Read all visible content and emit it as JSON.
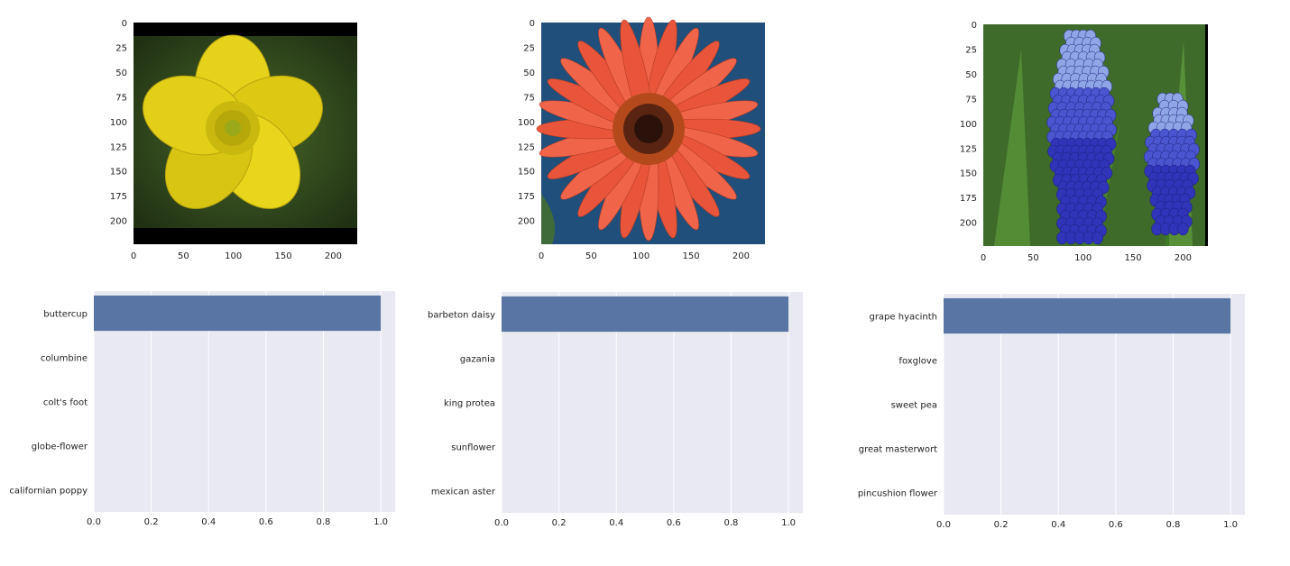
{
  "chart_data": [
    {
      "type": "image",
      "subject": "yellow buttercup flower",
      "xlim": [
        0,
        224
      ],
      "ylim": [
        224,
        0
      ],
      "xticks": [
        0,
        50,
        100,
        150,
        200
      ],
      "yticks": [
        0,
        25,
        50,
        75,
        100,
        125,
        150,
        175,
        200
      ]
    },
    {
      "type": "image",
      "subject": "red barbeton daisy",
      "xlim": [
        0,
        224
      ],
      "ylim": [
        224,
        0
      ],
      "xticks": [
        0,
        50,
        100,
        150,
        200
      ],
      "yticks": [
        0,
        25,
        50,
        75,
        100,
        125,
        150,
        175,
        200
      ]
    },
    {
      "type": "image",
      "subject": "blue grape hyacinth",
      "xlim": [
        0,
        224
      ],
      "ylim": [
        224,
        0
      ],
      "xticks": [
        0,
        50,
        100,
        150,
        200
      ],
      "yticks": [
        0,
        25,
        50,
        75,
        100,
        125,
        150,
        175,
        200
      ]
    },
    {
      "type": "bar",
      "orientation": "horizontal",
      "categories": [
        "buttercup",
        "columbine",
        "colt's foot",
        "globe-flower",
        "californian poppy"
      ],
      "values": [
        1.0,
        0,
        0,
        0,
        0
      ],
      "xlim": [
        0,
        1.05
      ],
      "xticks": [
        "0.0",
        "0.2",
        "0.4",
        "0.6",
        "0.8",
        "1.0"
      ],
      "grid": true
    },
    {
      "type": "bar",
      "orientation": "horizontal",
      "categories": [
        "barbeton daisy",
        "gazania",
        "king protea",
        "sunflower",
        "mexican aster"
      ],
      "values": [
        1.0,
        0,
        0,
        0,
        0
      ],
      "xlim": [
        0,
        1.05
      ],
      "xticks": [
        "0.0",
        "0.2",
        "0.4",
        "0.6",
        "0.8",
        "1.0"
      ],
      "grid": true
    },
    {
      "type": "bar",
      "orientation": "horizontal",
      "categories": [
        "grape hyacinth",
        "foxglove",
        "sweet pea",
        "great masterwort",
        "pincushion flower"
      ],
      "values": [
        1.0,
        0,
        0,
        0,
        0
      ],
      "xlim": [
        0,
        1.05
      ],
      "xticks": [
        "0.0",
        "0.2",
        "0.4",
        "0.6",
        "0.8",
        "1.0"
      ],
      "grid": true
    }
  ],
  "colors": {
    "bar": "#5975a4",
    "plot_background": "#e8e9f1",
    "grid": "#ffffff"
  }
}
